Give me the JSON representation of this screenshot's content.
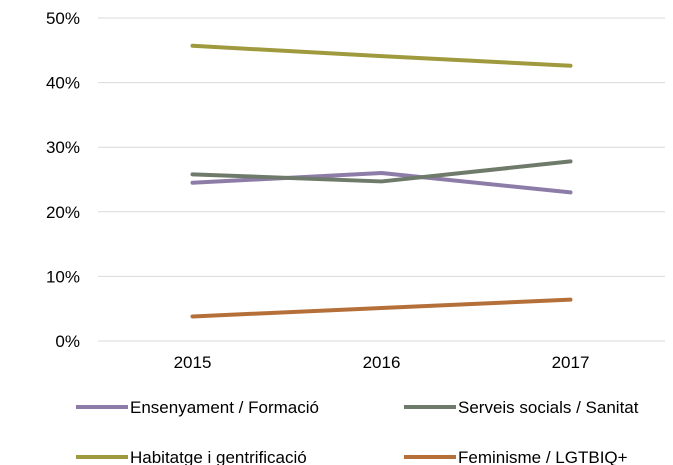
{
  "chart_data": {
    "type": "line",
    "title": "",
    "xlabel": "",
    "ylabel": "",
    "categories": [
      "2015",
      "2016",
      "2017"
    ],
    "ylim": [
      0,
      50
    ],
    "yticks": [
      "0%",
      "10%",
      "20%",
      "30%",
      "40%",
      "50%"
    ],
    "grid": "horizontal",
    "legend": "bottom",
    "series": [
      {
        "name": "Ensenyament / Formació",
        "values": [
          24.5,
          26.0,
          23.0
        ],
        "color": "#8E7CA8"
      },
      {
        "name": "Serveis socials / Sanitat",
        "values": [
          25.8,
          24.7,
          27.8
        ],
        "color": "#6F7B6A"
      },
      {
        "name": "Habitatge i gentrificació",
        "values": [
          45.7,
          44.1,
          42.6
        ],
        "color": "#9F9A3E"
      },
      {
        "name": "Feminisme / LGTBIQ+",
        "values": [
          3.8,
          5.1,
          6.4
        ],
        "color": "#B5703A"
      }
    ]
  }
}
